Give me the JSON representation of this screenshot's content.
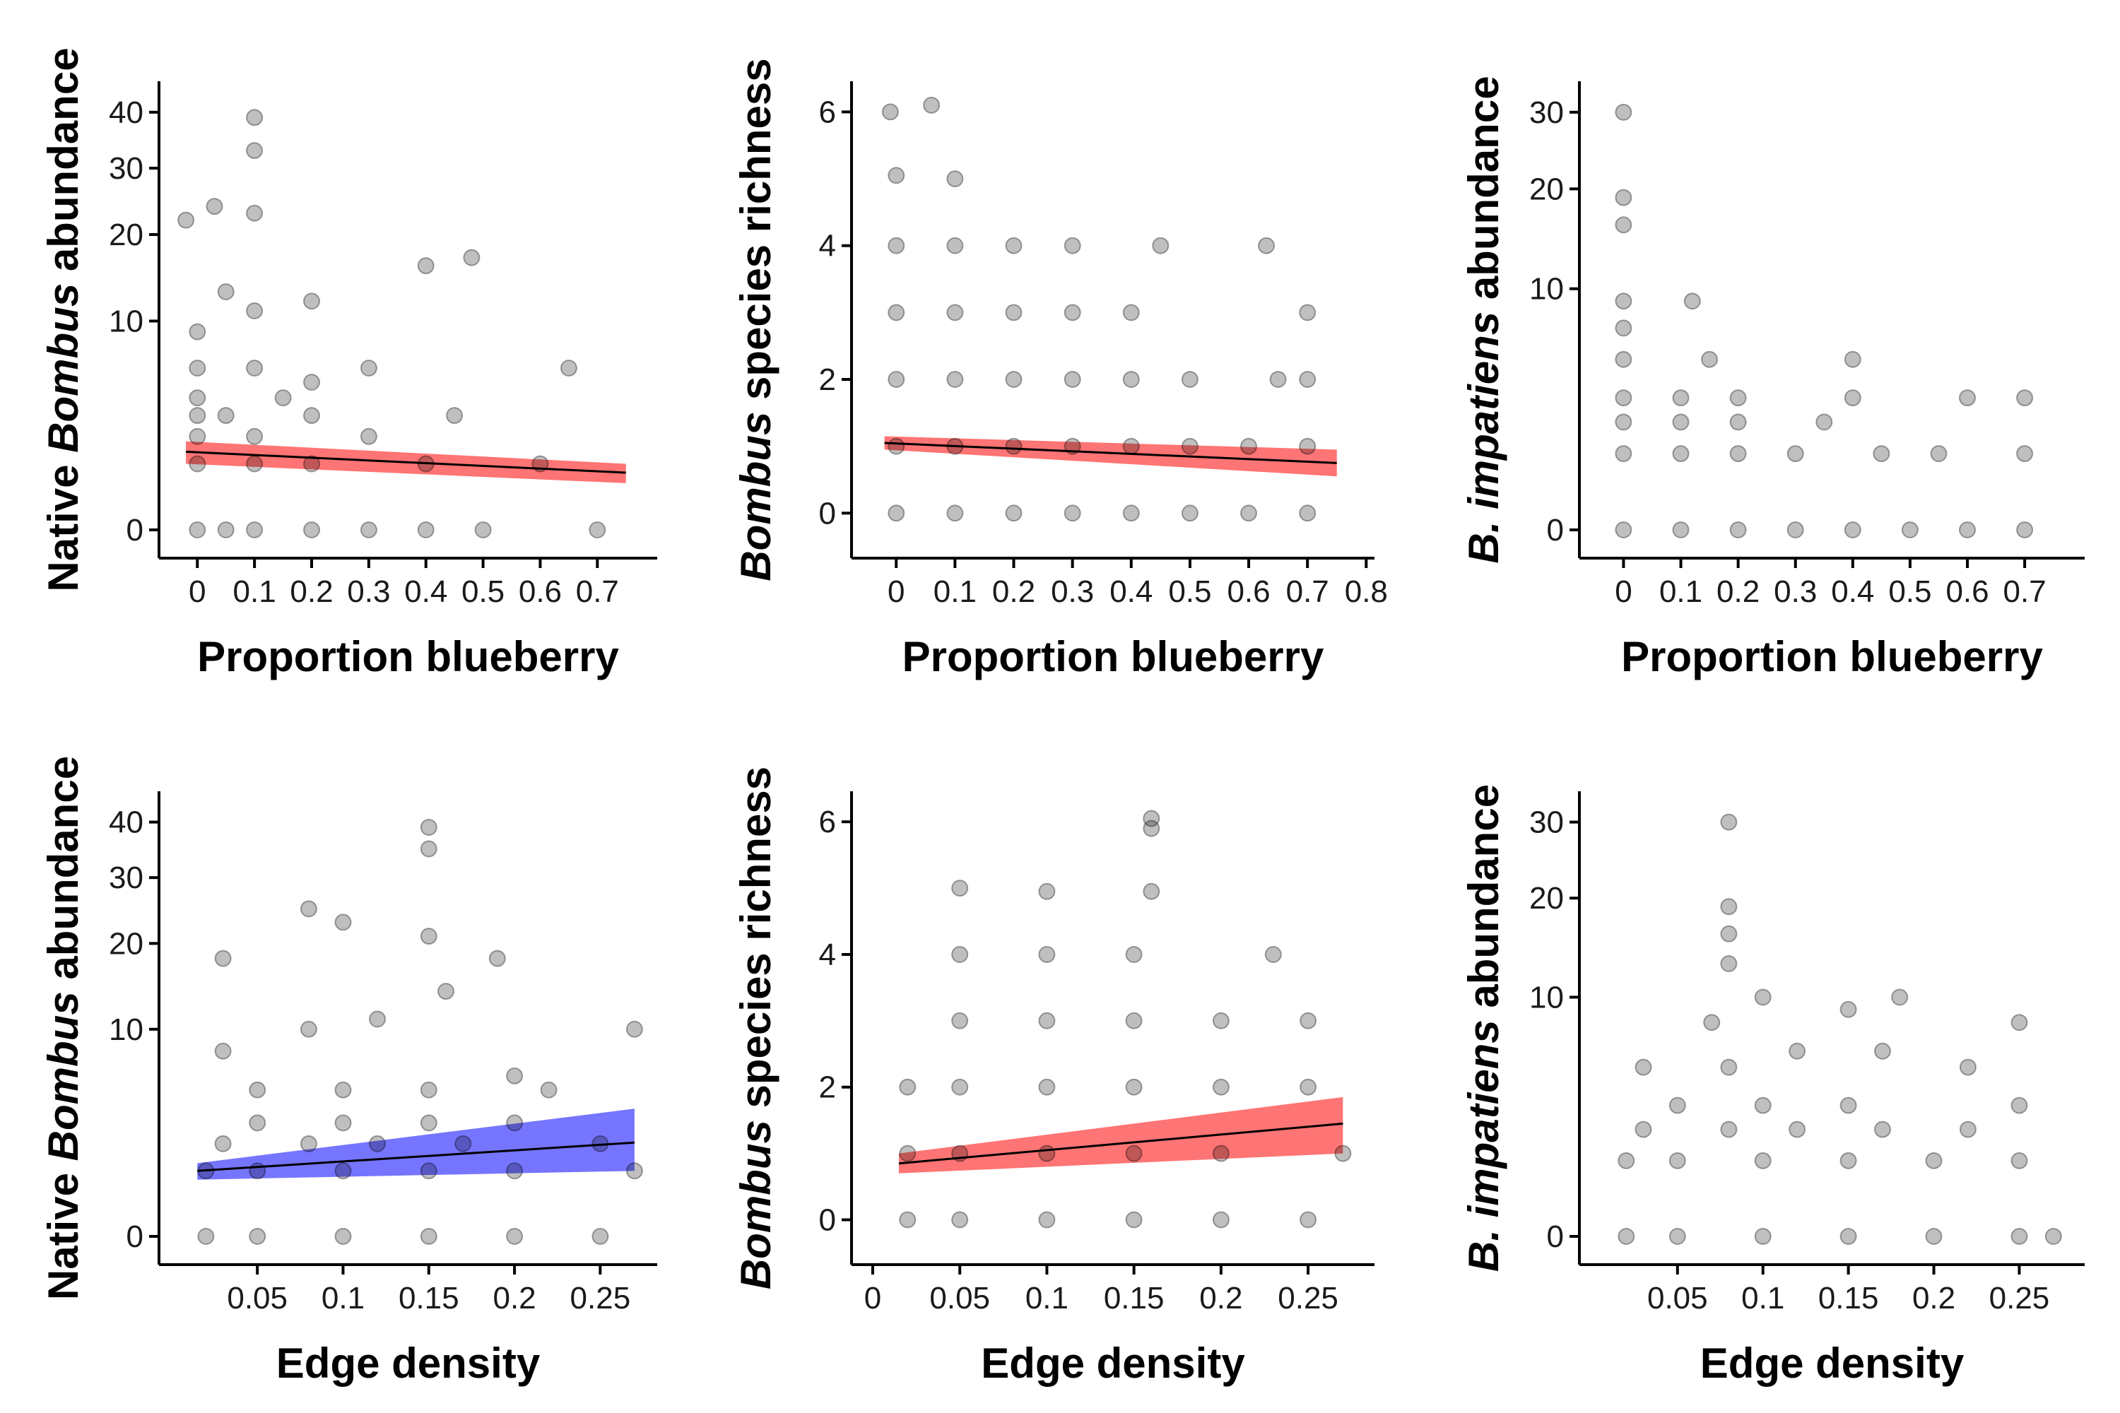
{
  "chart_data": [
    {
      "type": "scatter",
      "xlabel": "Proportion blueberry",
      "ylabel": [
        "Native ",
        "Bombus",
        " abundance"
      ],
      "y_scale": "sqrt",
      "xlim": [
        -0.03,
        0.78
      ],
      "ylim": [
        0,
        44
      ],
      "x_ticks": [
        0,
        0.1,
        0.2,
        0.3,
        0.4,
        0.5,
        0.6,
        0.7
      ],
      "x_tick_labels": [
        "0",
        "0.1",
        "0.2",
        "0.3",
        "0.4",
        "0.5",
        "0.6",
        "0.7"
      ],
      "y_ticks": [
        0,
        10,
        20,
        30,
        40
      ],
      "y_tick_labels": [
        "0",
        "10",
        "20",
        "30",
        "40"
      ],
      "points": [
        [
          0.0,
          0
        ],
        [
          0.05,
          0
        ],
        [
          0.1,
          0
        ],
        [
          0.2,
          0
        ],
        [
          0.3,
          0
        ],
        [
          0.4,
          0
        ],
        [
          0.5,
          0
        ],
        [
          0.7,
          0
        ],
        [
          0.0,
          1
        ],
        [
          0.1,
          1
        ],
        [
          0.2,
          1
        ],
        [
          0.4,
          1
        ],
        [
          0.6,
          1
        ],
        [
          0.0,
          2
        ],
        [
          0.1,
          2
        ],
        [
          0.3,
          2
        ],
        [
          0.0,
          3
        ],
        [
          0.05,
          3
        ],
        [
          0.2,
          3
        ],
        [
          0.45,
          3
        ],
        [
          0.0,
          4
        ],
        [
          0.15,
          4
        ],
        [
          0.0,
          6
        ],
        [
          0.1,
          6
        ],
        [
          0.2,
          5
        ],
        [
          0.3,
          6
        ],
        [
          0.65,
          6
        ],
        [
          0.0,
          9
        ],
        [
          0.1,
          11
        ],
        [
          0.05,
          13
        ],
        [
          0.2,
          12
        ],
        [
          0.4,
          16
        ],
        [
          0.48,
          17
        ],
        [
          -0.02,
          22
        ],
        [
          0.03,
          24
        ],
        [
          0.1,
          23
        ],
        [
          0.1,
          33
        ],
        [
          0.1,
          39
        ]
      ],
      "trend": {
        "color": "#ff2a2a",
        "x": [
          -0.02,
          0.75
        ],
        "y": [
          1.4,
          0.75
        ],
        "lower": [
          1.0,
          0.5
        ],
        "upper": [
          1.8,
          1.0
        ]
      }
    },
    {
      "type": "scatter",
      "xlabel": "Proportion blueberry",
      "ylabel": [
        "",
        "Bombus",
        " species richness"
      ],
      "y_scale": "linear",
      "xlim": [
        -0.04,
        0.79
      ],
      "ylim": [
        -0.25,
        6.3
      ],
      "x_ticks": [
        0,
        0.1,
        0.2,
        0.3,
        0.4,
        0.5,
        0.6,
        0.7,
        0.8
      ],
      "x_tick_labels": [
        "0",
        "0.1",
        "0.2",
        "0.3",
        "0.4",
        "0.5",
        "0.6",
        "0.7",
        "0.8"
      ],
      "y_ticks": [
        0,
        2,
        4,
        6
      ],
      "y_tick_labels": [
        "0",
        "2",
        "4",
        "6"
      ],
      "points": [
        [
          0.0,
          0
        ],
        [
          0.1,
          0
        ],
        [
          0.2,
          0
        ],
        [
          0.3,
          0
        ],
        [
          0.4,
          0
        ],
        [
          0.5,
          0
        ],
        [
          0.6,
          0
        ],
        [
          0.7,
          0
        ],
        [
          0.0,
          1
        ],
        [
          0.1,
          1
        ],
        [
          0.2,
          1
        ],
        [
          0.3,
          1
        ],
        [
          0.4,
          1
        ],
        [
          0.5,
          1
        ],
        [
          0.6,
          1
        ],
        [
          0.7,
          1
        ],
        [
          0.0,
          2
        ],
        [
          0.1,
          2
        ],
        [
          0.2,
          2
        ],
        [
          0.3,
          2
        ],
        [
          0.4,
          2
        ],
        [
          0.5,
          2
        ],
        [
          0.65,
          2
        ],
        [
          0.7,
          2
        ],
        [
          0.0,
          3
        ],
        [
          0.1,
          3
        ],
        [
          0.2,
          3
        ],
        [
          0.3,
          3
        ],
        [
          0.4,
          3
        ],
        [
          0.7,
          3
        ],
        [
          0.0,
          4
        ],
        [
          0.1,
          4
        ],
        [
          0.2,
          4
        ],
        [
          0.3,
          4
        ],
        [
          0.45,
          4
        ],
        [
          0.63,
          4
        ],
        [
          0.1,
          5
        ],
        [
          0.0,
          5.05
        ],
        [
          -0.01,
          6
        ],
        [
          0.06,
          6.1
        ]
      ],
      "trend": {
        "color": "#ff2a2a",
        "x": [
          -0.02,
          0.75
        ],
        "y": [
          1.05,
          0.75
        ],
        "lower": [
          0.95,
          0.55
        ],
        "upper": [
          1.15,
          0.95
        ]
      }
    },
    {
      "type": "scatter",
      "xlabel": "Proportion blueberry",
      "ylabel": [
        "",
        "B. impatiens",
        " abundance"
      ],
      "y_scale": "sqrt",
      "xlim": [
        -0.04,
        0.78
      ],
      "ylim": [
        0,
        33
      ],
      "x_ticks": [
        0,
        0.1,
        0.2,
        0.3,
        0.4,
        0.5,
        0.6,
        0.7
      ],
      "x_tick_labels": [
        "0",
        "0.1",
        "0.2",
        "0.3",
        "0.4",
        "0.5",
        "0.6",
        "0.7"
      ],
      "y_ticks": [
        0,
        10,
        20,
        30
      ],
      "y_tick_labels": [
        "0",
        "10",
        "20",
        "30"
      ],
      "points": [
        [
          0.0,
          0
        ],
        [
          0.1,
          0
        ],
        [
          0.2,
          0
        ],
        [
          0.3,
          0
        ],
        [
          0.4,
          0
        ],
        [
          0.5,
          0
        ],
        [
          0.6,
          0
        ],
        [
          0.7,
          0
        ],
        [
          0.0,
          1
        ],
        [
          0.1,
          1
        ],
        [
          0.2,
          1
        ],
        [
          0.3,
          1
        ],
        [
          0.45,
          1
        ],
        [
          0.55,
          1
        ],
        [
          0.7,
          1
        ],
        [
          0.0,
          2
        ],
        [
          0.1,
          2
        ],
        [
          0.2,
          2
        ],
        [
          0.35,
          2
        ],
        [
          0.0,
          3
        ],
        [
          0.1,
          3
        ],
        [
          0.2,
          3
        ],
        [
          0.4,
          3
        ],
        [
          0.6,
          3
        ],
        [
          0.7,
          3
        ],
        [
          0.0,
          5
        ],
        [
          0.15,
          5
        ],
        [
          0.4,
          5
        ],
        [
          0.0,
          7
        ],
        [
          0.12,
          9
        ],
        [
          0.0,
          9
        ],
        [
          0.0,
          16
        ],
        [
          0.0,
          19
        ],
        [
          0.0,
          30
        ]
      ]
    },
    {
      "type": "scatter",
      "xlabel": "Edge density",
      "ylabel": [
        "Native ",
        "Bombus",
        " abundance"
      ],
      "y_scale": "sqrt",
      "xlim": [
        0.005,
        0.275
      ],
      "ylim": [
        0,
        44
      ],
      "x_ticks": [
        0.05,
        0.1,
        0.15,
        0.2,
        0.25
      ],
      "x_tick_labels": [
        "0.05",
        "0.1",
        "0.15",
        "0.2",
        "0.25"
      ],
      "y_ticks": [
        0,
        10,
        20,
        30,
        40
      ],
      "y_tick_labels": [
        "0",
        "10",
        "20",
        "30",
        "40"
      ],
      "points": [
        [
          0.02,
          0
        ],
        [
          0.05,
          0
        ],
        [
          0.1,
          0
        ],
        [
          0.15,
          0
        ],
        [
          0.2,
          0
        ],
        [
          0.25,
          0
        ],
        [
          0.02,
          1
        ],
        [
          0.05,
          1
        ],
        [
          0.1,
          1
        ],
        [
          0.15,
          1
        ],
        [
          0.2,
          1
        ],
        [
          0.27,
          1
        ],
        [
          0.03,
          2
        ],
        [
          0.08,
          2
        ],
        [
          0.12,
          2
        ],
        [
          0.17,
          2
        ],
        [
          0.25,
          2
        ],
        [
          0.05,
          3
        ],
        [
          0.1,
          3
        ],
        [
          0.15,
          3
        ],
        [
          0.2,
          3
        ],
        [
          0.05,
          5
        ],
        [
          0.1,
          5
        ],
        [
          0.15,
          5
        ],
        [
          0.22,
          5
        ],
        [
          0.03,
          8
        ],
        [
          0.08,
          10
        ],
        [
          0.12,
          11
        ],
        [
          0.2,
          6
        ],
        [
          0.27,
          10
        ],
        [
          0.03,
          18
        ],
        [
          0.08,
          25
        ],
        [
          0.1,
          23
        ],
        [
          0.15,
          21
        ],
        [
          0.19,
          18
        ],
        [
          0.16,
          14
        ],
        [
          0.15,
          35
        ],
        [
          0.15,
          39
        ]
      ],
      "trend": {
        "color": "#2b2bff",
        "x": [
          0.015,
          0.27
        ],
        "y": [
          1.0,
          2.05
        ],
        "lower": [
          0.75,
          1.0
        ],
        "upper": [
          1.25,
          3.8
        ]
      }
    },
    {
      "type": "scatter",
      "xlabel": "Edge density",
      "ylabel": [
        "",
        "Bombus",
        " species richness"
      ],
      "y_scale": "linear",
      "xlim": [
        0.0,
        0.28
      ],
      "ylim": [
        -0.25,
        6.3
      ],
      "x_ticks": [
        0,
        0.05,
        0.1,
        0.15,
        0.2,
        0.25
      ],
      "x_tick_labels": [
        "0",
        "0.05",
        "0.1",
        "0.15",
        "0.2",
        "0.25"
      ],
      "y_ticks": [
        0,
        2,
        4,
        6
      ],
      "y_tick_labels": [
        "0",
        "2",
        "4",
        "6"
      ],
      "points": [
        [
          0.02,
          0
        ],
        [
          0.05,
          0
        ],
        [
          0.1,
          0
        ],
        [
          0.15,
          0
        ],
        [
          0.2,
          0
        ],
        [
          0.25,
          0
        ],
        [
          0.02,
          1
        ],
        [
          0.05,
          1
        ],
        [
          0.1,
          1
        ],
        [
          0.15,
          1
        ],
        [
          0.2,
          1
        ],
        [
          0.27,
          1
        ],
        [
          0.02,
          2
        ],
        [
          0.05,
          2
        ],
        [
          0.1,
          2
        ],
        [
          0.15,
          2
        ],
        [
          0.2,
          2
        ],
        [
          0.25,
          2
        ],
        [
          0.05,
          3
        ],
        [
          0.1,
          3
        ],
        [
          0.15,
          3
        ],
        [
          0.2,
          3
        ],
        [
          0.25,
          3
        ],
        [
          0.05,
          4
        ],
        [
          0.1,
          4
        ],
        [
          0.15,
          4
        ],
        [
          0.23,
          4
        ],
        [
          0.05,
          5
        ],
        [
          0.1,
          4.95
        ],
        [
          0.16,
          4.95
        ],
        [
          0.16,
          5.9
        ],
        [
          0.16,
          6.05
        ]
      ],
      "trend": {
        "color": "#ff2a2a",
        "x": [
          0.015,
          0.27
        ],
        "y": [
          0.85,
          1.45
        ],
        "lower": [
          0.7,
          1.0
        ],
        "upper": [
          1.0,
          1.85
        ]
      }
    },
    {
      "type": "scatter",
      "xlabel": "Edge density",
      "ylabel": [
        "",
        "B. impatiens",
        " abundance"
      ],
      "y_scale": "sqrt",
      "xlim": [
        0.005,
        0.28
      ],
      "ylim": [
        0,
        33
      ],
      "x_ticks": [
        0.05,
        0.1,
        0.15,
        0.2,
        0.25
      ],
      "x_tick_labels": [
        "0.05",
        "0.1",
        "0.15",
        "0.2",
        "0.25"
      ],
      "y_ticks": [
        0,
        10,
        20,
        30
      ],
      "y_tick_labels": [
        "0",
        "10",
        "20",
        "30"
      ],
      "points": [
        [
          0.02,
          0
        ],
        [
          0.05,
          0
        ],
        [
          0.1,
          0
        ],
        [
          0.15,
          0
        ],
        [
          0.2,
          0
        ],
        [
          0.25,
          0
        ],
        [
          0.27,
          0
        ],
        [
          0.02,
          1
        ],
        [
          0.05,
          1
        ],
        [
          0.1,
          1
        ],
        [
          0.15,
          1
        ],
        [
          0.2,
          1
        ],
        [
          0.25,
          1
        ],
        [
          0.03,
          2
        ],
        [
          0.08,
          2
        ],
        [
          0.12,
          2
        ],
        [
          0.17,
          2
        ],
        [
          0.22,
          2
        ],
        [
          0.05,
          3
        ],
        [
          0.1,
          3
        ],
        [
          0.15,
          3
        ],
        [
          0.25,
          3
        ],
        [
          0.03,
          5
        ],
        [
          0.08,
          5
        ],
        [
          0.12,
          6
        ],
        [
          0.17,
          6
        ],
        [
          0.22,
          5
        ],
        [
          0.07,
          8
        ],
        [
          0.1,
          10
        ],
        [
          0.15,
          9
        ],
        [
          0.18,
          10
        ],
        [
          0.25,
          8
        ],
        [
          0.08,
          13
        ],
        [
          0.08,
          16
        ],
        [
          0.08,
          19
        ],
        [
          0.08,
          30
        ]
      ]
    }
  ]
}
